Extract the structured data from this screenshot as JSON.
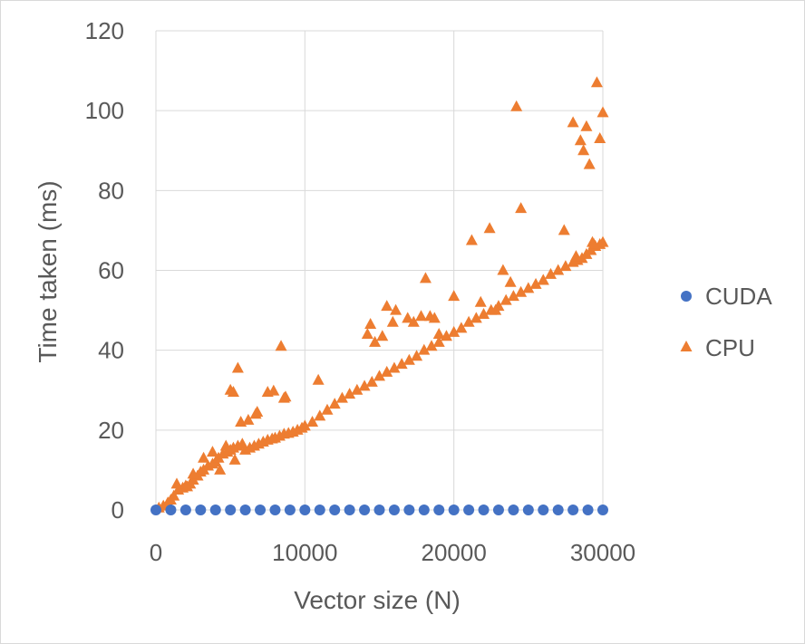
{
  "chart_data": {
    "type": "scatter",
    "title": "",
    "xlabel": "Vector size (N)",
    "ylabel": "Time taken (ms)",
    "xlim": [
      0,
      30000
    ],
    "ylim": [
      0,
      120
    ],
    "x_ticks": [
      "0",
      "10000",
      "20000",
      "30000"
    ],
    "y_ticks": [
      "0",
      "20",
      "40",
      "60",
      "80",
      "100",
      "120"
    ],
    "gridlines": "vertical and horizontal, light gray",
    "legend_position": "right",
    "series": [
      {
        "name": "CUDA",
        "marker": "circle",
        "color": "#4472C4",
        "x": [
          0,
          1000,
          2000,
          3000,
          4000,
          5000,
          6000,
          7000,
          8000,
          9000,
          10000,
          11000,
          12000,
          13000,
          14000,
          15000,
          16000,
          17000,
          18000,
          19000,
          20000,
          21000,
          22000,
          23000,
          24000,
          25000,
          26000,
          27000,
          28000,
          29000,
          30000
        ],
        "y": [
          0,
          0,
          0,
          0,
          0,
          0,
          0,
          0,
          0,
          0,
          0,
          0,
          0,
          0,
          0,
          0,
          0,
          0,
          0,
          0,
          0,
          0,
          0,
          0,
          0,
          0,
          0,
          0,
          0,
          0,
          0
        ]
      },
      {
        "name": "CPU",
        "marker": "triangle",
        "color": "#ED7D31",
        "x": [
          200,
          500,
          800,
          1000,
          1200,
          1500,
          1800,
          2000,
          2300,
          2500,
          2800,
          3000,
          3200,
          3500,
          3800,
          4000,
          4200,
          4500,
          4800,
          5000,
          5200,
          5500,
          5800,
          6000,
          6300,
          6600,
          6900,
          7200,
          7500,
          7800,
          8000,
          8300,
          8600,
          8900,
          9200,
          9500,
          9800,
          10000,
          10500,
          11000,
          11500,
          12000,
          12500,
          13000,
          13500,
          14000,
          14500,
          15000,
          15500,
          16000,
          16500,
          17000,
          17500,
          18000,
          18500,
          19000,
          19500,
          20000,
          20500,
          21000,
          21500,
          22000,
          22500,
          23000,
          23500,
          24000,
          24500,
          25000,
          25500,
          26000,
          26500,
          27000,
          27500,
          28000,
          28300,
          28600,
          28900,
          29200,
          29500,
          29800,
          30000,
          5000,
          5200,
          5500,
          5700,
          6700,
          7500,
          7900,
          8400,
          8600,
          8700,
          10900,
          14200,
          14400,
          14700,
          15200,
          15500,
          15900,
          16100,
          16900,
          17300,
          17800,
          18100,
          18400,
          18700,
          19000,
          20000,
          21200,
          21800,
          22400,
          22800,
          23300,
          23800,
          24200,
          24500,
          26000,
          27400,
          28000,
          28200,
          28500,
          28700,
          28900,
          29100,
          29300,
          29400,
          29600,
          29800,
          30000,
          1400,
          2100,
          2500,
          3200,
          3800,
          4300,
          4700,
          5300,
          6200,
          6800
        ],
        "y": [
          0.5,
          1.0,
          1.8,
          2.5,
          3.5,
          5.0,
          5.5,
          6.0,
          6.5,
          7.5,
          8.5,
          9.5,
          10.0,
          11.0,
          11.5,
          12.0,
          13.0,
          14.0,
          14.5,
          15.0,
          15.5,
          16.0,
          16.5,
          15.0,
          15.5,
          16.0,
          16.5,
          17.0,
          17.5,
          17.8,
          18.0,
          18.5,
          19.0,
          19.2,
          19.5,
          20.0,
          20.5,
          21.0,
          22.0,
          23.5,
          25.0,
          26.5,
          28.0,
          29.0,
          30.0,
          31.0,
          32.0,
          33.5,
          34.5,
          35.5,
          36.5,
          37.5,
          38.5,
          40.0,
          41.0,
          42.0,
          43.5,
          44.5,
          45.5,
          47.0,
          48.0,
          49.0,
          50.0,
          51.0,
          52.5,
          53.5,
          54.5,
          55.5,
          56.5,
          57.5,
          59.0,
          60.0,
          61.0,
          62.0,
          62.5,
          63.0,
          64.0,
          65.0,
          66.0,
          66.5,
          67.0,
          30.0,
          29.5,
          35.5,
          22.0,
          24.0,
          29.5,
          29.8,
          41.0,
          28.0,
          28.3,
          32.5,
          44.0,
          46.5,
          42.0,
          43.5,
          51.0,
          47.0,
          50.0,
          48.0,
          47.0,
          48.5,
          58.0,
          48.5,
          48.0,
          44.0,
          53.5,
          67.5,
          52.0,
          70.5,
          50.0,
          60.0,
          57.0,
          101.0,
          75.5,
          57.5,
          70.0,
          97.0,
          63.5,
          92.5,
          90.0,
          96.0,
          86.5,
          67.0,
          66.5,
          107.0,
          93.0,
          99.5,
          6.5,
          5.8,
          9.0,
          13.0,
          14.5,
          10.0,
          16.0,
          12.5,
          22.5,
          24.5
        ]
      }
    ]
  }
}
